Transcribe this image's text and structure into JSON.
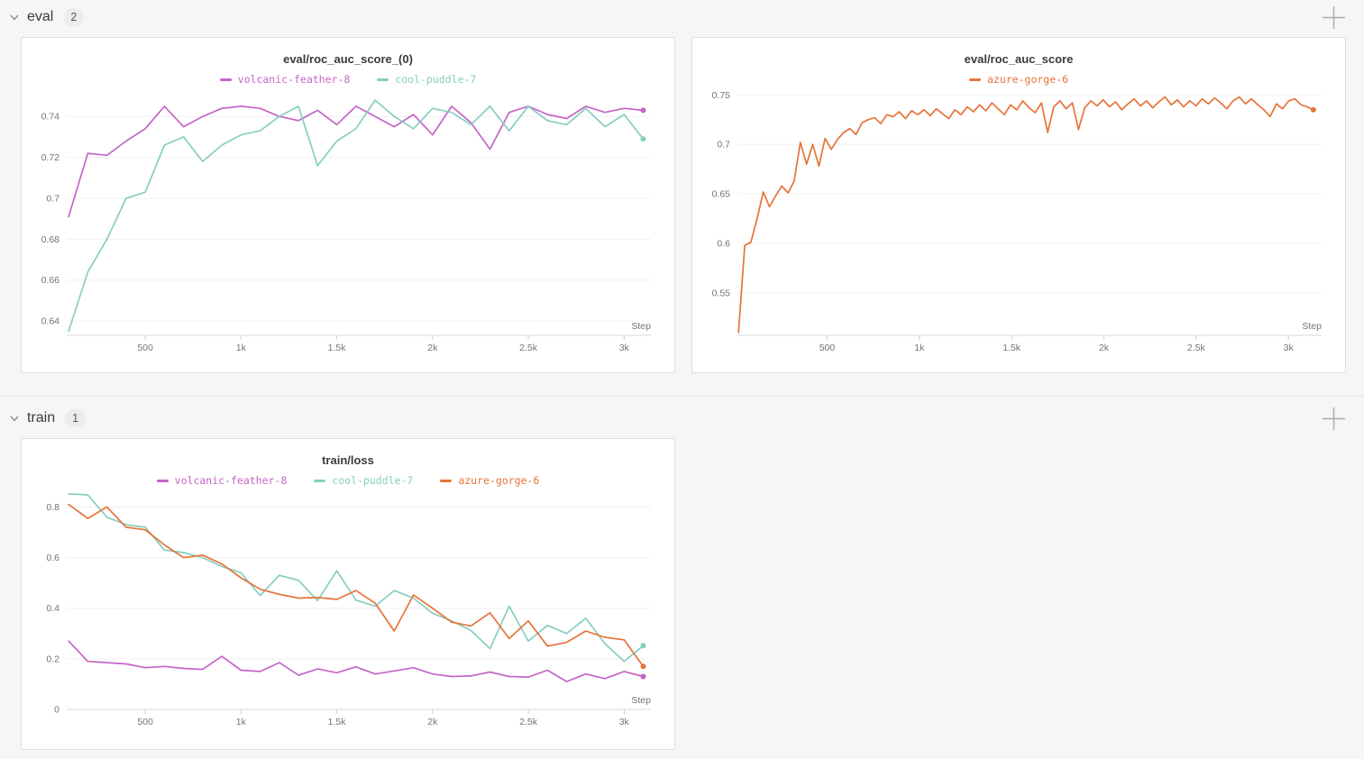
{
  "sections": [
    {
      "label": "eval",
      "count": "2"
    },
    {
      "label": "train",
      "count": "1"
    }
  ],
  "icons": {
    "section_collapse": "chevron-down",
    "section_add_panel": "plus"
  },
  "colors": {
    "volcanic_feather_8": "#C565C7",
    "cool_puddle_7": "#87CEBF",
    "azure_gorge_6": "#E57439",
    "grid": "#f0f0f3",
    "axis": "#d8d8dc",
    "tick": "#cfcfd4",
    "tick_text": "#72727c"
  },
  "chart_data": [
    {
      "type": "line",
      "title": "eval/roc_auc_score_(0)",
      "xlabel": "Step",
      "legend_position": "top",
      "grid": "horizontal",
      "xlim": [
        90,
        3140
      ],
      "ylim": [
        0.633,
        0.752
      ],
      "x_ticks": [
        500,
        1000,
        1500,
        2000,
        2500,
        3000
      ],
      "x_tick_labels": [
        "500",
        "1k",
        "1.5k",
        "2k",
        "2.5k",
        "3k"
      ],
      "y_ticks": [
        0.64,
        0.66,
        0.68,
        0.7,
        0.72,
        0.74
      ],
      "y_tick_labels": [
        "0.64",
        "0.66",
        "0.68",
        "0.7",
        "0.72",
        "0.74"
      ],
      "series": [
        {
          "name": "volcanic-feather-8",
          "color": "#C565C7",
          "x_start": 100,
          "x_step": 100,
          "values": [
            0.691,
            0.722,
            0.721,
            0.728,
            0.734,
            0.745,
            0.735,
            0.74,
            0.744,
            0.745,
            0.744,
            0.74,
            0.738,
            0.743,
            0.736,
            0.745,
            0.74,
            0.735,
            0.741,
            0.731,
            0.745,
            0.737,
            0.724,
            0.742,
            0.745,
            0.741,
            0.739,
            0.745,
            0.742,
            0.744,
            0.743
          ]
        },
        {
          "name": "cool-puddle-7",
          "color": "#87CEBF",
          "x_start": 100,
          "x_step": 100,
          "values": [
            0.635,
            0.664,
            0.68,
            0.7,
            0.703,
            0.726,
            0.73,
            0.718,
            0.726,
            0.731,
            0.733,
            0.74,
            0.745,
            0.716,
            0.728,
            0.734,
            0.748,
            0.74,
            0.734,
            0.744,
            0.742,
            0.736,
            0.745,
            0.733,
            0.745,
            0.738,
            0.736,
            0.744,
            0.735,
            0.741,
            0.729
          ]
        }
      ]
    },
    {
      "type": "line",
      "title": "eval/roc_auc_score",
      "xlabel": "Step",
      "legend_position": "top",
      "grid": "horizontal",
      "xlim": [
        14,
        3180
      ],
      "ylim": [
        0.507,
        0.753
      ],
      "x_ticks": [
        500,
        1000,
        1500,
        2000,
        2500,
        3000
      ],
      "x_tick_labels": [
        "500",
        "1k",
        "1.5k",
        "2k",
        "2.5k",
        "3k"
      ],
      "y_ticks": [
        0.55,
        0.6,
        0.65,
        0.7,
        0.75
      ],
      "y_tick_labels": [
        "0.55",
        "0.6",
        "0.65",
        "0.7",
        "0.75"
      ],
      "series": [
        {
          "name": "azure-gorge-6",
          "color": "#E57439",
          "x_start": 20,
          "x_step": 33.5,
          "values": [
            0.51,
            0.598,
            0.601,
            0.625,
            0.652,
            0.637,
            0.648,
            0.658,
            0.651,
            0.663,
            0.702,
            0.68,
            0.7,
            0.678,
            0.706,
            0.695,
            0.705,
            0.712,
            0.716,
            0.71,
            0.722,
            0.725,
            0.727,
            0.721,
            0.73,
            0.728,
            0.733,
            0.726,
            0.734,
            0.73,
            0.735,
            0.729,
            0.736,
            0.731,
            0.726,
            0.735,
            0.73,
            0.738,
            0.733,
            0.74,
            0.734,
            0.742,
            0.736,
            0.73,
            0.74,
            0.735,
            0.744,
            0.737,
            0.732,
            0.742,
            0.712,
            0.738,
            0.744,
            0.736,
            0.742,
            0.715,
            0.737,
            0.744,
            0.739,
            0.745,
            0.738,
            0.743,
            0.735,
            0.741,
            0.746,
            0.739,
            0.744,
            0.737,
            0.743,
            0.748,
            0.74,
            0.745,
            0.738,
            0.744,
            0.739,
            0.746,
            0.741,
            0.747,
            0.742,
            0.736,
            0.744,
            0.748,
            0.741,
            0.746,
            0.74,
            0.735,
            0.728,
            0.741,
            0.736,
            0.744,
            0.746,
            0.74,
            0.738,
            0.735
          ]
        }
      ]
    },
    {
      "type": "line",
      "title": "train/loss",
      "xlabel": "Step",
      "legend_position": "top",
      "grid": "horizontal",
      "xlim": [
        90,
        3140
      ],
      "ylim": [
        0,
        0.855
      ],
      "x_ticks": [
        500,
        1000,
        1500,
        2000,
        2500,
        3000
      ],
      "x_tick_labels": [
        "500",
        "1k",
        "1.5k",
        "2k",
        "2.5k",
        "3k"
      ],
      "y_ticks": [
        0,
        0.2,
        0.4,
        0.6,
        0.8
      ],
      "y_tick_labels": [
        "0",
        "0.2",
        "0.4",
        "0.6",
        "0.8"
      ],
      "series": [
        {
          "name": "volcanic-feather-8",
          "color": "#C565C7",
          "x_start": 100,
          "x_step": 100,
          "values": [
            0.27,
            0.19,
            0.185,
            0.18,
            0.165,
            0.17,
            0.162,
            0.158,
            0.21,
            0.155,
            0.15,
            0.185,
            0.135,
            0.16,
            0.145,
            0.168,
            0.14,
            0.152,
            0.165,
            0.14,
            0.13,
            0.132,
            0.148,
            0.13,
            0.128,
            0.155,
            0.11,
            0.14,
            0.122,
            0.15,
            0.13
          ]
        },
        {
          "name": "cool-puddle-7",
          "color": "#87CEBF",
          "x_start": 100,
          "x_step": 100,
          "values": [
            0.852,
            0.848,
            0.76,
            0.73,
            0.72,
            0.63,
            0.62,
            0.6,
            0.565,
            0.54,
            0.45,
            0.53,
            0.51,
            0.43,
            0.548,
            0.432,
            0.408,
            0.47,
            0.44,
            0.38,
            0.35,
            0.312,
            0.24,
            0.408,
            0.27,
            0.332,
            0.3,
            0.36,
            0.26,
            0.19,
            0.252
          ]
        },
        {
          "name": "azure-gorge-6",
          "color": "#E57439",
          "x_start": 100,
          "x_step": 100,
          "values": [
            0.81,
            0.755,
            0.8,
            0.72,
            0.71,
            0.65,
            0.6,
            0.61,
            0.575,
            0.52,
            0.475,
            0.455,
            0.44,
            0.442,
            0.435,
            0.47,
            0.42,
            0.31,
            0.452,
            0.4,
            0.345,
            0.33,
            0.382,
            0.28,
            0.35,
            0.25,
            0.265,
            0.31,
            0.285,
            0.275,
            0.17
          ]
        }
      ]
    }
  ]
}
